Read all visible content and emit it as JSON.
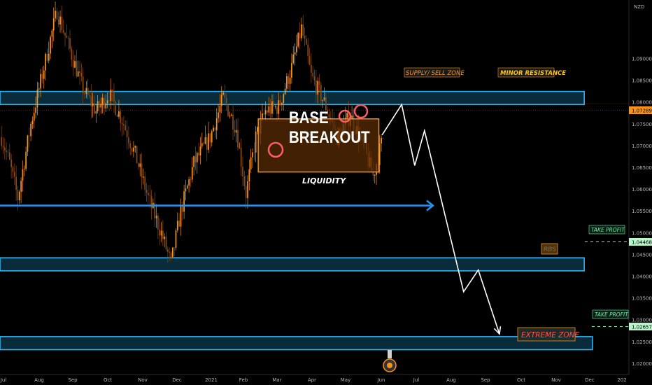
{
  "chart_data": {
    "type": "candlestick",
    "title": "",
    "symbol_unit": "NZD",
    "ylim": [
      1.0175,
      1.1035
    ],
    "yticks": [
      1.02,
      1.025,
      1.03,
      1.035,
      1.04,
      1.045,
      1.05,
      1.055,
      1.06,
      1.065,
      1.07,
      1.075,
      1.08,
      1.085,
      1.09
    ],
    "ytick_labels": [
      "1.02000",
      "1.02500",
      "1.03000",
      "1.03500",
      "1.04000",
      "1.04500",
      "1.05000",
      "1.05500",
      "1.06000",
      "1.06500",
      "1.07000",
      "1.07500",
      "1.08000",
      "1.08500",
      "1.09000"
    ],
    "xticks": [
      "Jul",
      "Aug",
      "Sep",
      "Oct",
      "Nov",
      "Dec",
      "2021",
      "Feb",
      "Mar",
      "Apr",
      "May",
      "Jun",
      "Jul",
      "Aug",
      "Sep",
      "Oct",
      "Nov",
      "Dec",
      "202"
    ],
    "current_price": "1.07289",
    "colors": {
      "up": "#f7931a",
      "down": "#8a4a12",
      "zone": "#29b6f6",
      "zone_fill": "#0e3a4c",
      "label_orange": "#f7931a",
      "label_red": "#ff5252",
      "take_profit": "#69f0ae",
      "price_tag": "#f7931a"
    },
    "price_path_anchors": [
      {
        "bar": 0,
        "price": 1.072
      },
      {
        "bar": 5,
        "price": 1.066
      },
      {
        "bar": 10,
        "price": 1.058
      },
      {
        "bar": 18,
        "price": 1.075
      },
      {
        "bar": 26,
        "price": 1.088
      },
      {
        "bar": 34,
        "price": 1.101
      },
      {
        "bar": 42,
        "price": 1.092
      },
      {
        "bar": 50,
        "price": 1.083
      },
      {
        "bar": 58,
        "price": 1.078
      },
      {
        "bar": 66,
        "price": 1.082
      },
      {
        "bar": 74,
        "price": 1.076
      },
      {
        "bar": 82,
        "price": 1.068
      },
      {
        "bar": 90,
        "price": 1.058
      },
      {
        "bar": 98,
        "price": 1.05
      },
      {
        "bar": 104,
        "price": 1.043
      },
      {
        "bar": 110,
        "price": 1.055
      },
      {
        "bar": 118,
        "price": 1.066
      },
      {
        "bar": 128,
        "price": 1.072
      },
      {
        "bar": 136,
        "price": 1.081
      },
      {
        "bar": 144,
        "price": 1.074
      },
      {
        "bar": 150,
        "price": 1.059
      },
      {
        "bar": 156,
        "price": 1.072
      },
      {
        "bar": 162,
        "price": 1.078
      },
      {
        "bar": 170,
        "price": 1.079
      },
      {
        "bar": 178,
        "price": 1.088
      },
      {
        "bar": 184,
        "price": 1.097
      },
      {
        "bar": 190,
        "price": 1.086
      },
      {
        "bar": 198,
        "price": 1.08
      },
      {
        "bar": 206,
        "price": 1.072
      },
      {
        "bar": 214,
        "price": 1.077
      },
      {
        "bar": 222,
        "price": 1.07
      },
      {
        "bar": 228,
        "price": 1.063
      },
      {
        "bar": 234,
        "price": 1.072
      }
    ],
    "projection_path": [
      {
        "bar": 234,
        "price": 1.0725
      },
      {
        "bar": 246,
        "price": 1.0795
      },
      {
        "bar": 254,
        "price": 1.0655
      },
      {
        "bar": 260,
        "price": 1.0735
      },
      {
        "bar": 284,
        "price": 1.0365
      },
      {
        "bar": 293,
        "price": 1.0415
      },
      {
        "bar": 306,
        "price": 1.0268
      }
    ],
    "zones": [
      {
        "name": "supply",
        "lo": 1.0795,
        "hi": 1.0825,
        "x_end_bar": 358
      },
      {
        "name": "rbs",
        "lo": 1.0413,
        "hi": 1.0443,
        "x_end_bar": 358
      },
      {
        "name": "extreme",
        "lo": 1.0232,
        "hi": 1.0262,
        "x_end_bar": 363
      }
    ],
    "base_box": {
      "bar_start": 158,
      "bar_end": 232,
      "lo": 1.064,
      "hi": 1.0762
    },
    "liquidity_level": 1.0563,
    "take_profit_levels": [
      "1.04468",
      "1.02657"
    ]
  },
  "annotations": {
    "supply": "SUPPLY/ SELL ZONE",
    "minor": "MINOR RESISTANCE",
    "base_line1": "BASE",
    "base_line2": "BREAKOUT",
    "liquidity": "LIQUIDITY",
    "rbs": "RBS",
    "extreme": "EXTREME ZONE",
    "take_profit": "TAKE PROFIT"
  }
}
